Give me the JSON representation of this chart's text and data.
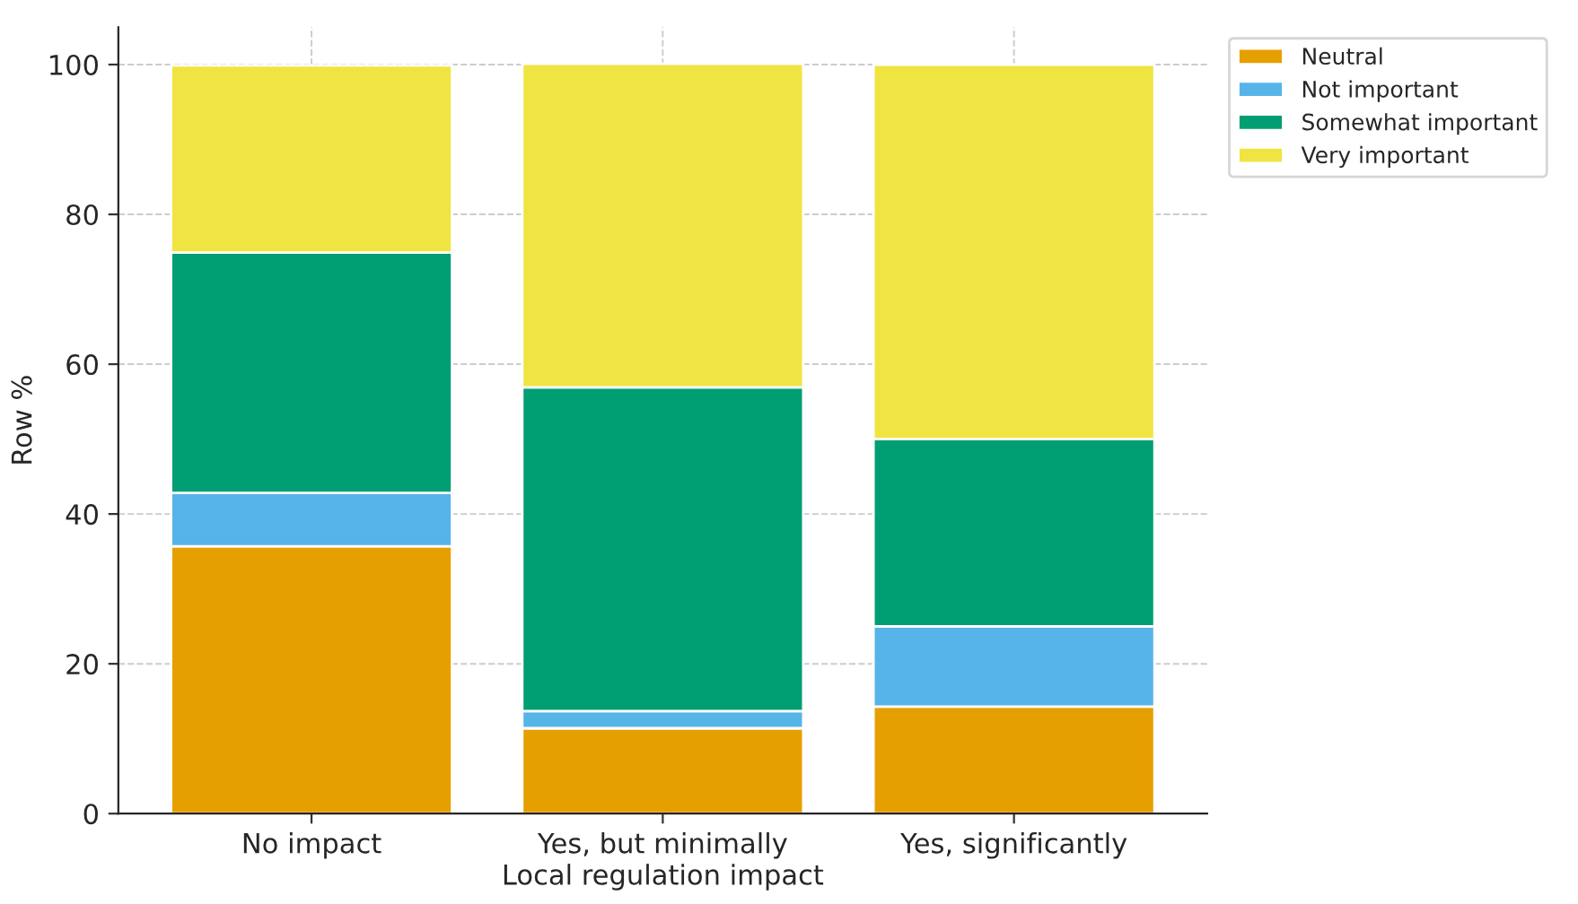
{
  "chart_data": {
    "type": "bar",
    "stacked": true,
    "categories": [
      "No impact",
      "Yes, but minimally",
      "Yes, significantly"
    ],
    "series": [
      {
        "name": "Neutral",
        "color": "#e69f00",
        "values": [
          35.7,
          11.4,
          14.3
        ]
      },
      {
        "name": "Not important",
        "color": "#56b4e9",
        "values": [
          7.1,
          2.3,
          10.7
        ]
      },
      {
        "name": "Somewhat important",
        "color": "#009e73",
        "values": [
          32.1,
          43.2,
          25.0
        ]
      },
      {
        "name": "Very important",
        "color": "#f0e442",
        "values": [
          25.0,
          43.2,
          50.0
        ]
      }
    ],
    "xlabel": "Local regulation impact",
    "ylabel": "Row %",
    "ylim": [
      0,
      105
    ],
    "yticks": [
      0,
      20,
      40,
      60,
      80,
      100
    ],
    "grid": true,
    "legend": "top right"
  }
}
